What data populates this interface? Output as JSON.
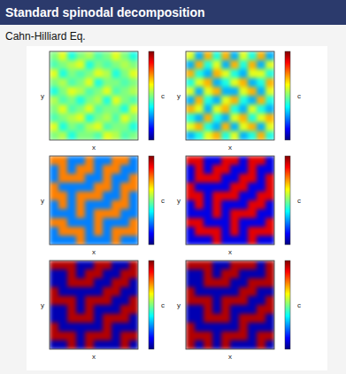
{
  "header": {
    "title": "Standard spinodal decomposition",
    "subtitle": "Cahn-Hilliard Eq."
  },
  "chart_data": [
    {
      "type": "heatmap",
      "x_label": "x",
      "y_label": "y",
      "colorbar_label": "c",
      "colorbar_range": [
        0,
        1
      ],
      "tick_labels": false,
      "cells": [
        [
          0.5,
          0.6,
          0.4,
          0.5,
          0.55,
          0.45,
          0.5,
          0.6,
          0.5,
          0.4
        ],
        [
          0.45,
          0.5,
          0.55,
          0.6,
          0.4,
          0.5,
          0.45,
          0.5,
          0.55,
          0.5
        ],
        [
          0.6,
          0.4,
          0.5,
          0.45,
          0.5,
          0.6,
          0.55,
          0.4,
          0.5,
          0.6
        ],
        [
          0.5,
          0.55,
          0.45,
          0.5,
          0.6,
          0.4,
          0.5,
          0.5,
          0.45,
          0.5
        ],
        [
          0.4,
          0.5,
          0.6,
          0.55,
          0.45,
          0.5,
          0.6,
          0.45,
          0.5,
          0.55
        ],
        [
          0.55,
          0.45,
          0.5,
          0.4,
          0.5,
          0.55,
          0.4,
          0.6,
          0.5,
          0.45
        ],
        [
          0.5,
          0.6,
          0.45,
          0.5,
          0.6,
          0.45,
          0.5,
          0.5,
          0.4,
          0.6
        ],
        [
          0.45,
          0.5,
          0.55,
          0.6,
          0.4,
          0.5,
          0.55,
          0.45,
          0.6,
          0.5
        ],
        [
          0.6,
          0.4,
          0.5,
          0.45,
          0.55,
          0.6,
          0.45,
          0.5,
          0.5,
          0.4
        ],
        [
          0.5,
          0.55,
          0.4,
          0.5,
          0.5,
          0.45,
          0.6,
          0.55,
          0.45,
          0.5
        ]
      ]
    },
    {
      "type": "heatmap",
      "x_label": "x",
      "y_label": "y",
      "colorbar_label": "c",
      "colorbar_range": [
        0,
        1
      ],
      "tick_labels": false,
      "cells": [
        [
          0.6,
          0.3,
          0.7,
          0.4,
          0.7,
          0.3,
          0.6,
          0.4,
          0.7,
          0.3
        ],
        [
          0.3,
          0.7,
          0.4,
          0.6,
          0.3,
          0.7,
          0.4,
          0.7,
          0.3,
          0.6
        ],
        [
          0.7,
          0.4,
          0.3,
          0.7,
          0.6,
          0.4,
          0.3,
          0.6,
          0.6,
          0.4
        ],
        [
          0.4,
          0.6,
          0.7,
          0.3,
          0.4,
          0.6,
          0.7,
          0.3,
          0.4,
          0.7
        ],
        [
          0.6,
          0.3,
          0.6,
          0.7,
          0.3,
          0.3,
          0.6,
          0.7,
          0.3,
          0.6
        ],
        [
          0.3,
          0.7,
          0.4,
          0.3,
          0.6,
          0.7,
          0.4,
          0.3,
          0.7,
          0.4
        ],
        [
          0.7,
          0.6,
          0.3,
          0.6,
          0.7,
          0.4,
          0.3,
          0.6,
          0.4,
          0.3
        ],
        [
          0.4,
          0.3,
          0.7,
          0.4,
          0.3,
          0.6,
          0.7,
          0.4,
          0.6,
          0.7
        ],
        [
          0.6,
          0.7,
          0.4,
          0.3,
          0.7,
          0.3,
          0.6,
          0.7,
          0.3,
          0.6
        ],
        [
          0.3,
          0.4,
          0.6,
          0.7,
          0.4,
          0.6,
          0.3,
          0.4,
          0.7,
          0.4
        ]
      ]
    },
    {
      "type": "heatmap",
      "x_label": "x",
      "y_label": "y",
      "colorbar_label": "c",
      "colorbar_range": [
        0,
        1
      ],
      "tick_labels": false,
      "cells": [
        [
          0.75,
          0.75,
          0.25,
          0.25,
          0.75,
          0.25,
          0.25,
          0.75,
          0.75,
          0.25
        ],
        [
          0.25,
          0.75,
          0.25,
          0.75,
          0.75,
          0.25,
          0.75,
          0.75,
          0.25,
          0.25
        ],
        [
          0.25,
          0.75,
          0.75,
          0.75,
          0.25,
          0.25,
          0.75,
          0.25,
          0.25,
          0.75
        ],
        [
          0.75,
          0.25,
          0.25,
          0.25,
          0.25,
          0.75,
          0.75,
          0.25,
          0.75,
          0.75
        ],
        [
          0.75,
          0.75,
          0.25,
          0.75,
          0.75,
          0.75,
          0.25,
          0.25,
          0.75,
          0.25
        ],
        [
          0.25,
          0.75,
          0.25,
          0.75,
          0.25,
          0.25,
          0.25,
          0.75,
          0.75,
          0.25
        ],
        [
          0.25,
          0.25,
          0.25,
          0.75,
          0.25,
          0.75,
          0.75,
          0.75,
          0.25,
          0.25
        ],
        [
          0.75,
          0.75,
          0.25,
          0.25,
          0.25,
          0.75,
          0.25,
          0.25,
          0.25,
          0.75
        ],
        [
          0.25,
          0.75,
          0.75,
          0.75,
          0.25,
          0.75,
          0.25,
          0.75,
          0.75,
          0.75
        ],
        [
          0.25,
          0.25,
          0.25,
          0.75,
          0.25,
          0.25,
          0.25,
          0.75,
          0.25,
          0.25
        ]
      ]
    },
    {
      "type": "heatmap",
      "x_label": "x",
      "y_label": "y",
      "colorbar_label": "c",
      "colorbar_range": [
        0,
        1
      ],
      "tick_labels": false,
      "cells": [
        [
          0.9,
          0.9,
          0.1,
          0.1,
          0.9,
          0.9,
          0.1,
          0.9,
          0.9,
          0.1
        ],
        [
          0.1,
          0.9,
          0.1,
          0.9,
          0.9,
          0.1,
          0.1,
          0.9,
          0.1,
          0.1
        ],
        [
          0.1,
          0.9,
          0.9,
          0.9,
          0.1,
          0.1,
          0.9,
          0.9,
          0.1,
          0.9
        ],
        [
          0.9,
          0.1,
          0.1,
          0.1,
          0.1,
          0.9,
          0.9,
          0.1,
          0.1,
          0.9
        ],
        [
          0.9,
          0.9,
          0.1,
          0.9,
          0.9,
          0.9,
          0.1,
          0.1,
          0.9,
          0.9
        ],
        [
          0.1,
          0.9,
          0.1,
          0.9,
          0.1,
          0.1,
          0.1,
          0.9,
          0.9,
          0.1
        ],
        [
          0.1,
          0.1,
          0.1,
          0.9,
          0.1,
          0.9,
          0.9,
          0.9,
          0.1,
          0.1
        ],
        [
          0.9,
          0.9,
          0.1,
          0.1,
          0.1,
          0.9,
          0.1,
          0.1,
          0.1,
          0.9
        ],
        [
          0.1,
          0.9,
          0.9,
          0.9,
          0.1,
          0.9,
          0.1,
          0.9,
          0.9,
          0.9
        ],
        [
          0.1,
          0.1,
          0.1,
          0.9,
          0.1,
          0.1,
          0.1,
          0.9,
          0.1,
          0.1
        ]
      ]
    },
    {
      "type": "heatmap",
      "x_label": "x",
      "y_label": "y",
      "colorbar_label": "c",
      "colorbar_range": [
        0,
        1
      ],
      "tick_labels": false,
      "cells": [
        [
          0.95,
          0.95,
          0.95,
          0.05,
          0.05,
          0.95,
          0.95,
          0.05,
          0.05,
          0.95
        ],
        [
          0.05,
          0.05,
          0.95,
          0.05,
          0.95,
          0.95,
          0.05,
          0.05,
          0.95,
          0.95
        ],
        [
          0.05,
          0.05,
          0.95,
          0.95,
          0.95,
          0.05,
          0.05,
          0.95,
          0.95,
          0.05
        ],
        [
          0.95,
          0.05,
          0.05,
          0.05,
          0.05,
          0.05,
          0.95,
          0.95,
          0.05,
          0.05
        ],
        [
          0.95,
          0.95,
          0.95,
          0.05,
          0.95,
          0.95,
          0.95,
          0.05,
          0.05,
          0.95
        ],
        [
          0.05,
          0.05,
          0.95,
          0.05,
          0.95,
          0.05,
          0.05,
          0.05,
          0.95,
          0.95
        ],
        [
          0.05,
          0.05,
          0.95,
          0.95,
          0.95,
          0.05,
          0.95,
          0.95,
          0.95,
          0.05
        ],
        [
          0.95,
          0.05,
          0.05,
          0.05,
          0.05,
          0.05,
          0.95,
          0.05,
          0.05,
          0.05
        ],
        [
          0.95,
          0.95,
          0.95,
          0.05,
          0.95,
          0.95,
          0.95,
          0.05,
          0.95,
          0.95
        ],
        [
          0.05,
          0.05,
          0.95,
          0.05,
          0.95,
          0.05,
          0.05,
          0.05,
          0.95,
          0.05
        ]
      ]
    },
    {
      "type": "heatmap",
      "x_label": "x",
      "y_label": "y",
      "colorbar_label": "c",
      "colorbar_range": [
        0,
        1
      ],
      "tick_labels": false,
      "cells": [
        [
          0.95,
          0.95,
          0.95,
          0.05,
          0.05,
          0.95,
          0.95,
          0.95,
          0.05,
          0.95
        ],
        [
          0.05,
          0.05,
          0.95,
          0.05,
          0.95,
          0.95,
          0.05,
          0.05,
          0.05,
          0.95
        ],
        [
          0.05,
          0.05,
          0.95,
          0.95,
          0.95,
          0.05,
          0.05,
          0.95,
          0.95,
          0.95
        ],
        [
          0.95,
          0.05,
          0.05,
          0.05,
          0.05,
          0.05,
          0.95,
          0.95,
          0.05,
          0.05
        ],
        [
          0.95,
          0.95,
          0.95,
          0.05,
          0.95,
          0.95,
          0.95,
          0.05,
          0.05,
          0.95
        ],
        [
          0.05,
          0.05,
          0.95,
          0.05,
          0.95,
          0.05,
          0.05,
          0.05,
          0.95,
          0.95
        ],
        [
          0.05,
          0.05,
          0.95,
          0.95,
          0.95,
          0.05,
          0.95,
          0.95,
          0.95,
          0.05
        ],
        [
          0.95,
          0.05,
          0.05,
          0.05,
          0.05,
          0.05,
          0.95,
          0.05,
          0.05,
          0.05
        ],
        [
          0.95,
          0.95,
          0.95,
          0.05,
          0.95,
          0.95,
          0.95,
          0.05,
          0.95,
          0.95
        ],
        [
          0.95,
          0.05,
          0.95,
          0.05,
          0.95,
          0.05,
          0.05,
          0.05,
          0.95,
          0.05
        ]
      ]
    }
  ]
}
